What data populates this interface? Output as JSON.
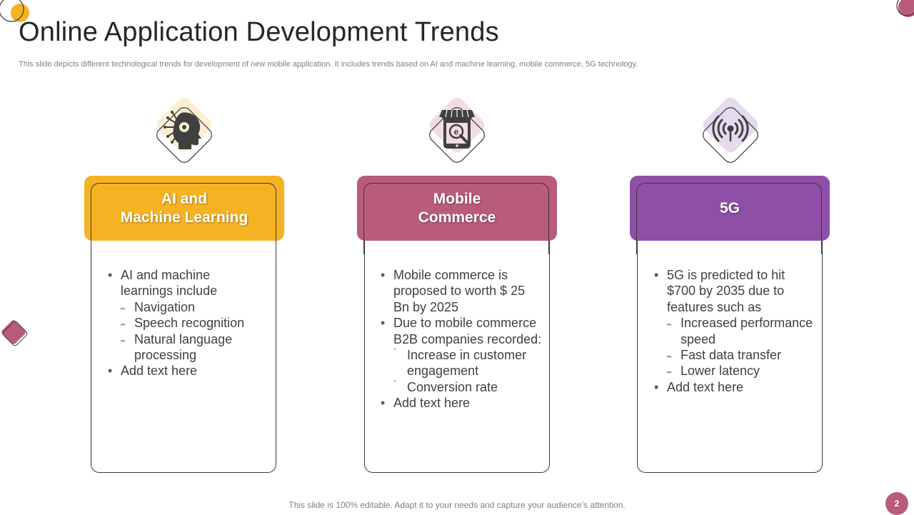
{
  "slide": {
    "title": "Online Application Development Trends",
    "subtitle": "This slide depicts different technological trends for development of new mobile application. It includes trends based on AI and machine learning, mobile commerce, 5G technology.",
    "footer": "This slide is 100% editable. Adapt it to your needs and capture your audience’s attention.",
    "page_number": "2"
  },
  "colors": {
    "yellow": "#F5B324",
    "rose": "#B85C7A",
    "purple": "#8E4FA6"
  },
  "cards": [
    {
      "title": "AI and\nMachine Learning",
      "icon": "brain-head-icon",
      "items": [
        {
          "level": 1,
          "text": "AI and machine learnings include"
        },
        {
          "level": 2,
          "text": "Navigation"
        },
        {
          "level": 2,
          "text": "Speech recognition"
        },
        {
          "level": 2,
          "text": "Natural language processing"
        },
        {
          "level": 1,
          "text": "Add text here"
        }
      ]
    },
    {
      "title": "Mobile\nCommerce",
      "icon": "mobile-store-icon",
      "items": [
        {
          "level": 1,
          "text": "Mobile commerce is proposed to worth $ 25 Bn by 2025"
        },
        {
          "level": 1,
          "text": "Due to mobile commerce B2B companies recorded:"
        },
        {
          "level": 2,
          "text": "Increase in customer engagement"
        },
        {
          "level": 2,
          "text": "Conversion rate"
        },
        {
          "level": 1,
          "text": "Add text here"
        }
      ]
    },
    {
      "title": "5G",
      "icon": "signal-tower-icon",
      "items": [
        {
          "level": 1,
          "text": "5G is predicted to hit $700 by 2035 due to features such as"
        },
        {
          "level": 2,
          "text": "Increased performance speed"
        },
        {
          "level": 2,
          "text": "Fast data transfer"
        },
        {
          "level": 2,
          "text": "Lower latency"
        },
        {
          "level": 1,
          "text": "Add text here"
        }
      ]
    }
  ]
}
